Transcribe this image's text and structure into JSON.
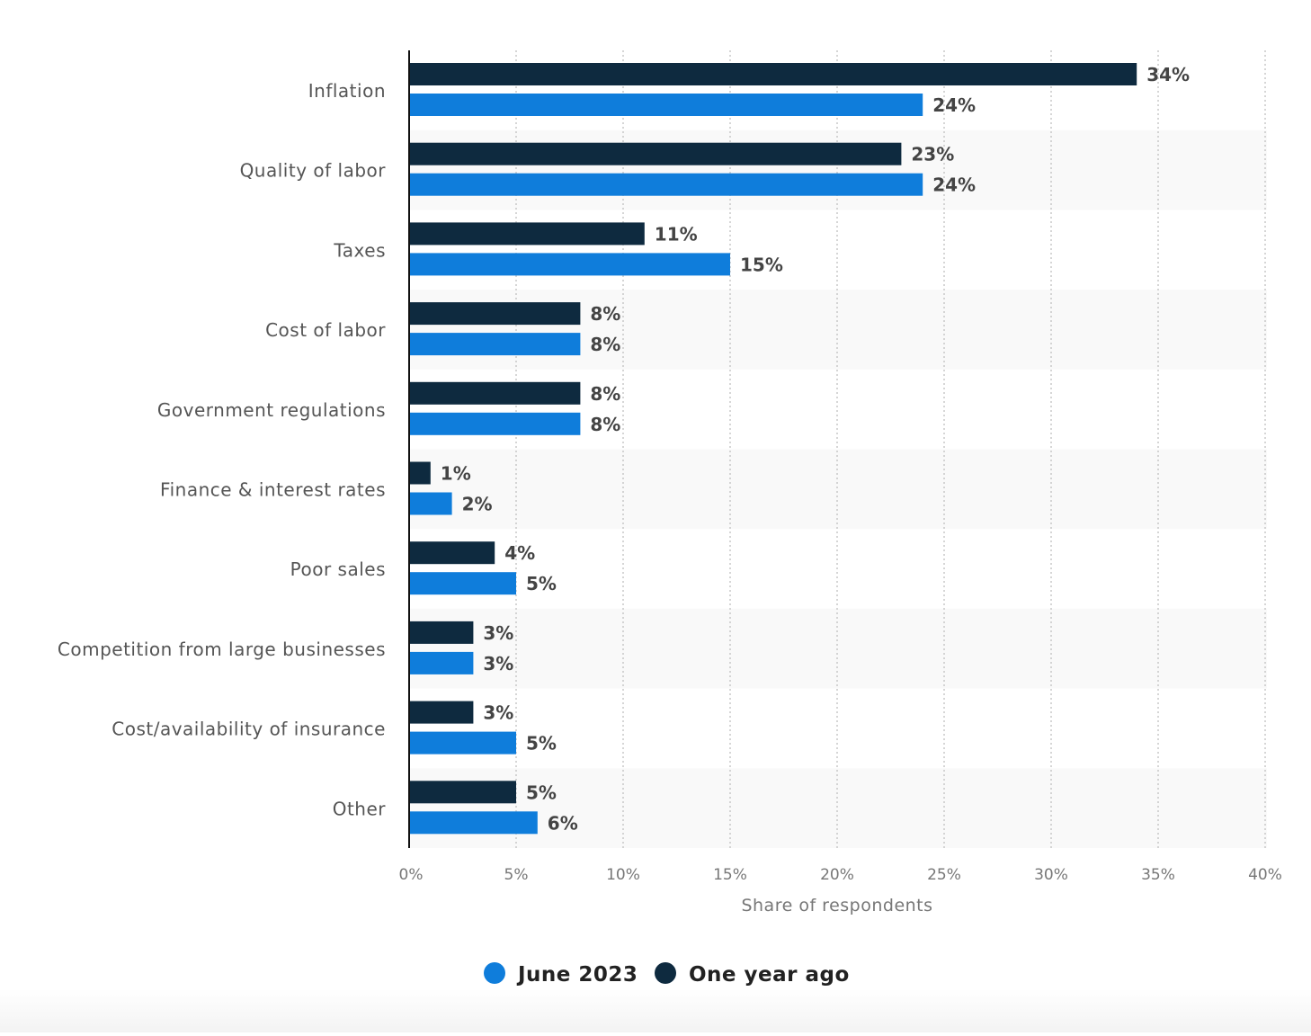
{
  "chart_data": {
    "type": "bar",
    "orientation": "horizontal",
    "categories": [
      "Inflation",
      "Quality of labor",
      "Taxes",
      "Cost of labor",
      "Government regulations",
      "Finance & interest rates",
      "Poor sales",
      "Competition from large businesses",
      "Cost/availability of insurance",
      "Other"
    ],
    "series": [
      {
        "name": "One year ago",
        "color": "#0e2a3f",
        "values": [
          34,
          23,
          11,
          8,
          8,
          1,
          4,
          3,
          3,
          5
        ]
      },
      {
        "name": "June 2023",
        "color": "#0f7ddb",
        "values": [
          24,
          24,
          15,
          8,
          8,
          2,
          5,
          3,
          5,
          6
        ]
      }
    ],
    "legend": [
      "June 2023",
      "One year ago"
    ],
    "legend_placement": "bottom",
    "xlabel": "Share of respondents",
    "ylabel": "",
    "xlim": [
      0,
      40
    ],
    "x_ticks": [
      "0%",
      "5%",
      "10%",
      "15%",
      "20%",
      "25%",
      "30%",
      "35%",
      "40%"
    ],
    "value_suffix": "%",
    "grid": true
  }
}
